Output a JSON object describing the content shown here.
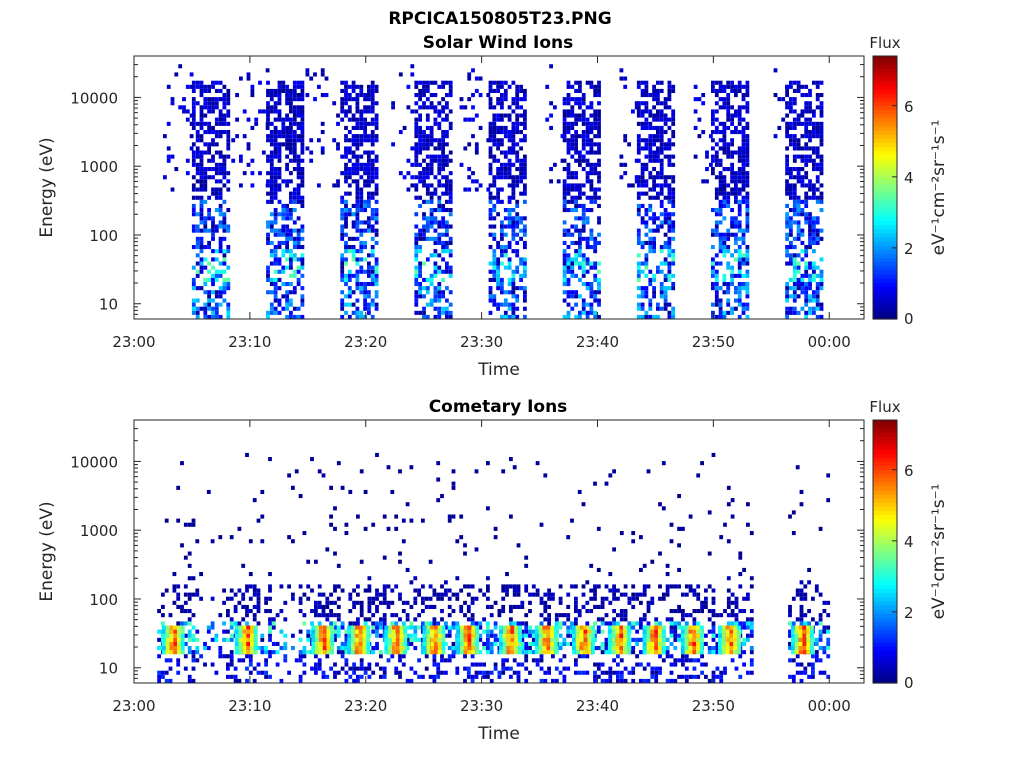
{
  "figure_title": "RPCICA150805T23.PNG",
  "colorbar": {
    "title": "Flux",
    "label": "eV⁻¹cm⁻²sr⁻¹s⁻¹",
    "ticks": [
      "0",
      "2",
      "4",
      "6"
    ],
    "range": [
      0,
      7.4
    ]
  },
  "chart_data": [
    {
      "type": "heatmap",
      "title": "Solar Wind Ions",
      "xlabel": "Time",
      "ylabel": "Energy (eV)",
      "x_ticks": [
        "23:00",
        "23:10",
        "23:20",
        "23:30",
        "23:40",
        "23:50",
        "00:00"
      ],
      "xlim_minutes": [
        0,
        63
      ],
      "y_scale": "log",
      "y_ticks": [
        "10",
        "100",
        "1000",
        "10000"
      ],
      "ylim": [
        6,
        40000
      ],
      "grid": false,
      "sweep_start_minutes": [
        5.0,
        11.4,
        17.8,
        24.2,
        30.6,
        37.0,
        43.4,
        49.8,
        56.2
      ],
      "sweep_duration_minutes": 3.2,
      "scatter_before_sweep_minutes": [
        2.5,
        3.0,
        3.0,
        2.0,
        2.5,
        1.5,
        1.5,
        1.5,
        1.0
      ],
      "peak_flux_by_energy_band": [
        {
          "energy_range": [
            6,
            20
          ],
          "flux": 2.0
        },
        {
          "energy_range": [
            20,
            60
          ],
          "flux": 2.8
        },
        {
          "energy_range": [
            60,
            300
          ],
          "flux": 1.6
        },
        {
          "energy_range": [
            300,
            20000
          ],
          "flux": 0.6
        }
      ]
    },
    {
      "type": "heatmap",
      "title": "Cometary Ions",
      "xlabel": "Time",
      "ylabel": "Energy (eV)",
      "x_ticks": [
        "23:00",
        "23:10",
        "23:20",
        "23:30",
        "23:40",
        "23:50",
        "00:00"
      ],
      "xlim_minutes": [
        0,
        63
      ],
      "y_scale": "log",
      "y_ticks": [
        "10",
        "100",
        "1000",
        "10000"
      ],
      "ylim": [
        6,
        40000
      ],
      "grid": false,
      "hot_spot_minutes": [
        3.3,
        9.6,
        16.2,
        19.3,
        22.5,
        25.8,
        28.7,
        32.4,
        35.5,
        38.7,
        41.8,
        44.8,
        48.1,
        51.3,
        57.6
      ],
      "hot_spot_energy_range": [
        15,
        40
      ],
      "hot_spot_peak_flux": 6.8,
      "peak_flux_by_energy_band": [
        {
          "energy_range": [
            6,
            14
          ],
          "flux": 2.5
        },
        {
          "energy_range": [
            14,
            45
          ],
          "flux": 6.8
        },
        {
          "energy_range": [
            45,
            200
          ],
          "flux": 0.9
        },
        {
          "energy_range": [
            200,
            12000
          ],
          "flux": 0.3
        }
      ]
    }
  ]
}
